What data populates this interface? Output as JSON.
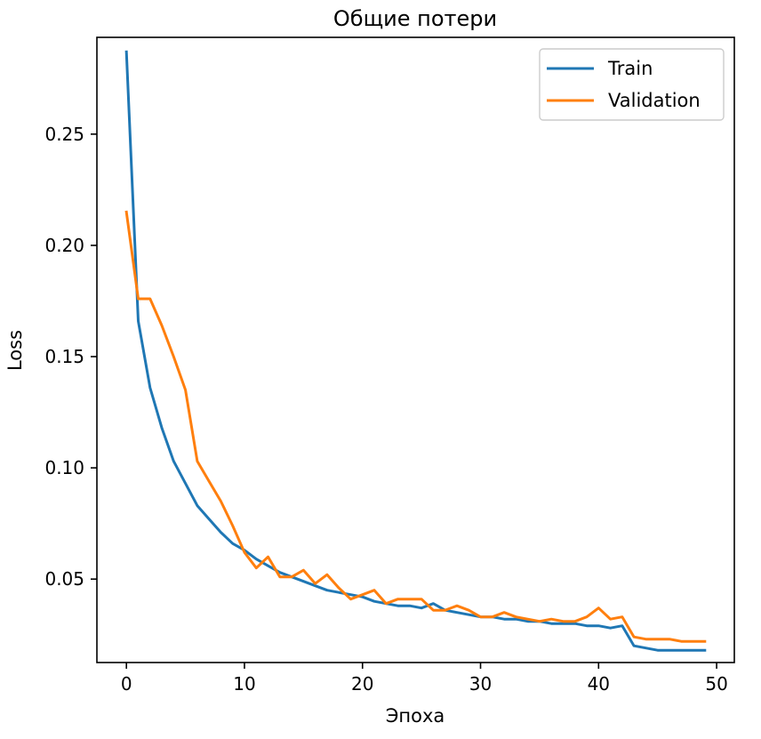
{
  "chart_data": {
    "type": "line",
    "title": "Общие потери",
    "xlabel": "Эпоха",
    "ylabel": "Loss",
    "xlim": [
      -2.5,
      51.5
    ],
    "ylim": [
      0.0125,
      0.2935
    ],
    "xticks": [
      0,
      10,
      20,
      30,
      40,
      50
    ],
    "xtick_labels": [
      "0",
      "10",
      "20",
      "30",
      "40",
      "50"
    ],
    "yticks": [
      0.05,
      0.1,
      0.15,
      0.2,
      0.25
    ],
    "ytick_labels": [
      "0.05",
      "0.10",
      "0.15",
      "0.20",
      "0.25"
    ],
    "grid": false,
    "legend_position": "top-right",
    "x": [
      0,
      1,
      2,
      3,
      4,
      5,
      6,
      7,
      8,
      9,
      10,
      11,
      12,
      13,
      14,
      15,
      16,
      17,
      18,
      19,
      20,
      21,
      22,
      23,
      24,
      25,
      26,
      27,
      28,
      29,
      30,
      31,
      32,
      33,
      34,
      35,
      36,
      37,
      38,
      39,
      40,
      41,
      42,
      43,
      44,
      45,
      46,
      47,
      48,
      49
    ],
    "series": [
      {
        "name": "Train",
        "color": "#1f77b4",
        "values": [
          0.287,
          0.166,
          0.136,
          0.118,
          0.103,
          0.093,
          0.083,
          0.077,
          0.071,
          0.066,
          0.063,
          0.059,
          0.056,
          0.053,
          0.051,
          0.049,
          0.047,
          0.045,
          0.044,
          0.043,
          0.042,
          0.04,
          0.039,
          0.038,
          0.038,
          0.037,
          0.039,
          0.036,
          0.035,
          0.034,
          0.033,
          0.033,
          0.032,
          0.032,
          0.031,
          0.031,
          0.03,
          0.03,
          0.03,
          0.029,
          0.029,
          0.028,
          0.029,
          0.02,
          0.019,
          0.018,
          0.018,
          0.018,
          0.018,
          0.018
        ]
      },
      {
        "name": "Validation",
        "color": "#ff7f0e",
        "values": [
          0.215,
          0.176,
          0.176,
          0.164,
          0.15,
          0.135,
          0.103,
          0.094,
          0.085,
          0.074,
          0.062,
          0.055,
          0.06,
          0.051,
          0.051,
          0.054,
          0.048,
          0.052,
          0.046,
          0.041,
          0.043,
          0.045,
          0.039,
          0.041,
          0.041,
          0.041,
          0.036,
          0.036,
          0.038,
          0.036,
          0.033,
          0.033,
          0.035,
          0.033,
          0.032,
          0.031,
          0.032,
          0.031,
          0.031,
          0.033,
          0.037,
          0.032,
          0.033,
          0.024,
          0.023,
          0.023,
          0.023,
          0.022,
          0.022,
          0.022
        ]
      }
    ]
  }
}
